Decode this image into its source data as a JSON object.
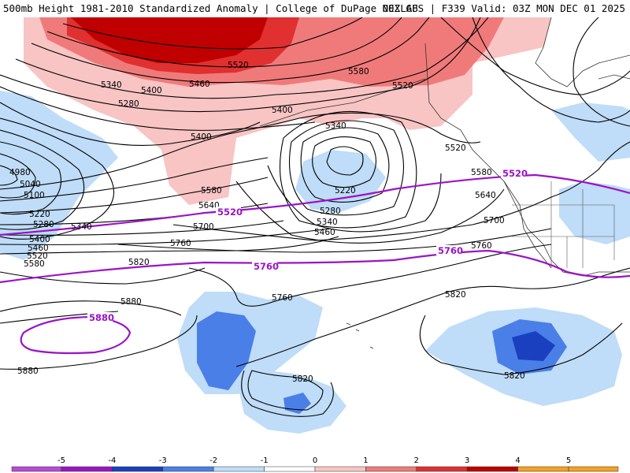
{
  "header": {
    "left": "500mb Height 1981-2010 Standardized Anomaly | College of DuPage NEXLAB",
    "right": "00Z GFS | F339 Valid: 03Z MON DEC 01 2025"
  },
  "colorbar": {
    "ticks": [
      "-5",
      "-4",
      "-3",
      "-2",
      "-1",
      "0",
      "1",
      "2",
      "3",
      "4",
      "5"
    ],
    "colors": [
      "#b64bd8",
      "#9a14c7",
      "#1a3fbf",
      "#4a7fe8",
      "#bfdcf8",
      "#ffffff",
      "#f8c4c4",
      "#f07a7a",
      "#e03030",
      "#c00000",
      "#f5a020"
    ]
  },
  "contour_labels": [
    {
      "id": "c5520-top",
      "text": "5520"
    },
    {
      "id": "c5580-top",
      "text": "5580"
    },
    {
      "id": "c5520-top2",
      "text": "5520"
    },
    {
      "id": "c5460-top",
      "text": "5460"
    },
    {
      "id": "c5340-nw",
      "text": "5340"
    },
    {
      "id": "c5400-nw",
      "text": "5400"
    },
    {
      "id": "c5280-nw",
      "text": "5280"
    },
    {
      "id": "c5400-mid",
      "text": "5400"
    },
    {
      "id": "c5400-al",
      "text": "5400"
    },
    {
      "id": "c5340-low",
      "text": "5340"
    },
    {
      "id": "c5520-nw",
      "text": "5520"
    },
    {
      "id": "c5580-nw",
      "text": "5580"
    },
    {
      "id": "c5640-nw",
      "text": "5640"
    },
    {
      "id": "c5700-nw",
      "text": "5700"
    },
    {
      "id": "c5220-low",
      "text": "5220"
    },
    {
      "id": "c5280-low",
      "text": "5280"
    },
    {
      "id": "c5340-low2",
      "text": "5340"
    },
    {
      "id": "c5460-low",
      "text": "5460"
    },
    {
      "id": "c4980",
      "text": "4980"
    },
    {
      "id": "c5040",
      "text": "5040"
    },
    {
      "id": "c5100",
      "text": "5100"
    },
    {
      "id": "c5220-w",
      "text": "5220"
    },
    {
      "id": "c5280-w",
      "text": "5280"
    },
    {
      "id": "c5340-w",
      "text": "5340"
    },
    {
      "id": "c5400-w",
      "text": "5400"
    },
    {
      "id": "c5460-w",
      "text": "5460"
    },
    {
      "id": "c5520-w",
      "text": "5520"
    },
    {
      "id": "c5580-w",
      "text": "5580"
    },
    {
      "id": "c5580-mid",
      "text": "5580"
    },
    {
      "id": "c5640-mid",
      "text": "5640"
    },
    {
      "id": "c5700-mid",
      "text": "5700"
    },
    {
      "id": "c5760-w",
      "text": "5760"
    },
    {
      "id": "c5820-w",
      "text": "5820"
    },
    {
      "id": "c5880-w",
      "text": "5880"
    },
    {
      "id": "c5880-sw",
      "text": "5880"
    },
    {
      "id": "c5760-s",
      "text": "5760"
    },
    {
      "id": "c5760-e",
      "text": "5760"
    },
    {
      "id": "c5820-e",
      "text": "5820"
    },
    {
      "id": "c5820-s",
      "text": "5820"
    },
    {
      "id": "c5820-se",
      "text": "5820"
    }
  ],
  "highlight_labels": [
    {
      "id": "p5520-w",
      "text": "5520"
    },
    {
      "id": "p5520-e",
      "text": "5520"
    },
    {
      "id": "p5760-mid",
      "text": "5760"
    },
    {
      "id": "p5760-e",
      "text": "5760"
    },
    {
      "id": "p5880",
      "text": "5880"
    }
  ]
}
